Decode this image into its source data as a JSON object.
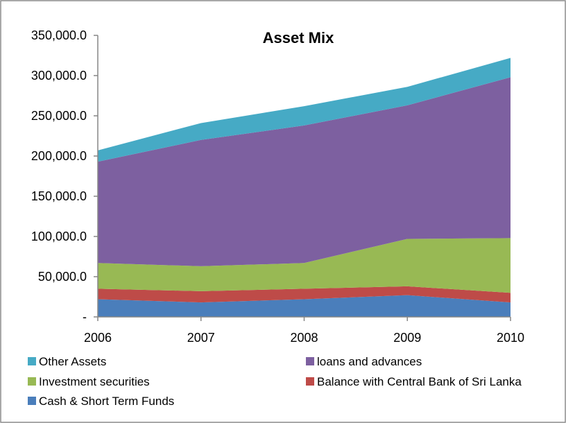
{
  "chart_data": {
    "type": "area",
    "stacked": true,
    "title": "Asset Mix",
    "xlabel": "",
    "ylabel": "",
    "categories": [
      "2006",
      "2007",
      "2008",
      "2009",
      "2010"
    ],
    "ylim": [
      0,
      350000
    ],
    "y_ticks": [
      0,
      50000,
      100000,
      150000,
      200000,
      250000,
      300000,
      350000
    ],
    "y_tick_labels": [
      "-",
      "50,000.0",
      "100,000.0",
      "150,000.0",
      "200,000.0",
      "250,000.0",
      "300,000.0",
      "350,000.0"
    ],
    "grid": false,
    "legend_position": "bottom",
    "series": [
      {
        "name": "Cash & Short Term Funds",
        "color": "#4a7ebb",
        "values": [
          22000,
          18000,
          22000,
          27000,
          18000
        ]
      },
      {
        "name": "Balance with Central Bank of Sri Lanka",
        "color": "#be4b48",
        "values": [
          13000,
          14000,
          13000,
          11000,
          12000
        ]
      },
      {
        "name": "Investment securities",
        "color": "#98b954",
        "values": [
          32000,
          31000,
          32000,
          59000,
          68000
        ]
      },
      {
        "name": "loans and advances",
        "color": "#7d60a0",
        "values": [
          126000,
          157000,
          171000,
          166000,
          200000
        ]
      },
      {
        "name": "Other Assets",
        "color": "#46aac5",
        "values": [
          14000,
          21000,
          24000,
          23000,
          24000
        ]
      }
    ],
    "legend_order": [
      "Other Assets",
      "loans and advances",
      "Investment securities",
      "Balance with Central Bank of Sri Lanka",
      "Cash & Short Term Funds"
    ]
  }
}
